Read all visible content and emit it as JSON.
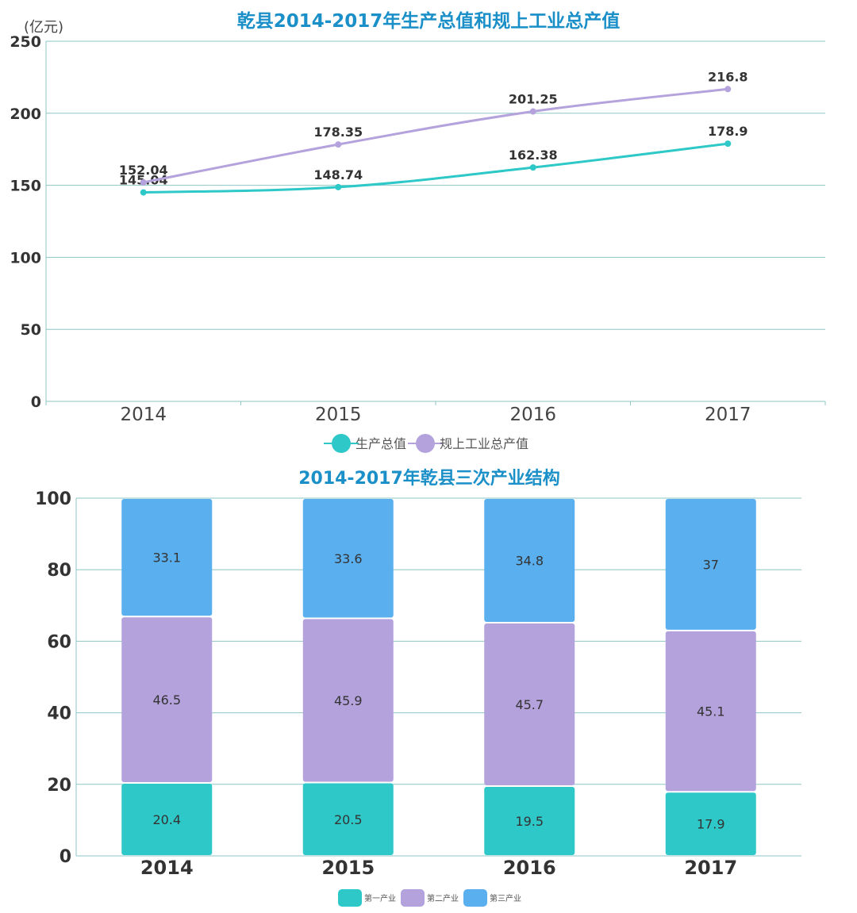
{
  "colors": {
    "title": "#1a8fc8",
    "teal": "#2ec8c8",
    "purple": "#b4a2dd",
    "blue": "#5aafef",
    "grid": "#8ec5c5",
    "axis_text": "#333333",
    "label_text": "#333333"
  },
  "chart_data": [
    {
      "type": "line",
      "title": "乾县2014-2017年生产总值和规上工业总产值",
      "unit_label": "(亿元)",
      "categories": [
        "2014",
        "2015",
        "2016",
        "2017"
      ],
      "ylim": [
        0,
        250
      ],
      "yticks": [
        0,
        50,
        100,
        150,
        200,
        250
      ],
      "series": [
        {
          "name": "生产总值",
          "color_key": "teal",
          "values": [
            145.04,
            148.74,
            162.38,
            178.9
          ],
          "labels": [
            "145.04",
            "148.74",
            "162.38",
            "178.9"
          ]
        },
        {
          "name": "规上工业总产值",
          "color_key": "purple",
          "values": [
            152.04,
            178.35,
            201.25,
            216.8
          ],
          "labels": [
            "152.04",
            "178.35",
            "201.25",
            "216.8"
          ]
        }
      ],
      "legend_position": "bottom-center",
      "grid": true
    },
    {
      "type": "bar",
      "stacked": true,
      "title": "2014-2017年乾县三次产业结构",
      "categories": [
        "2014",
        "2015",
        "2016",
        "2017"
      ],
      "ylim": [
        0,
        100
      ],
      "yticks": [
        0,
        20,
        40,
        60,
        80,
        100
      ],
      "series": [
        {
          "name": "第一产业",
          "color_key": "teal",
          "values": [
            20.4,
            20.5,
            19.5,
            17.9
          ],
          "labels": [
            "20.4",
            "20.5",
            "19.5",
            "17.9"
          ]
        },
        {
          "name": "第二产业",
          "color_key": "purple",
          "values": [
            46.5,
            45.9,
            45.7,
            45.1
          ],
          "labels": [
            "46.5",
            "45.9",
            "45.7",
            "45.1"
          ]
        },
        {
          "name": "第三产业",
          "color_key": "blue",
          "values": [
            33.1,
            33.6,
            34.8,
            37
          ],
          "labels": [
            "33.1",
            "33.6",
            "34.8",
            "37"
          ]
        }
      ],
      "legend_position": "bottom-center",
      "grid": true
    }
  ]
}
